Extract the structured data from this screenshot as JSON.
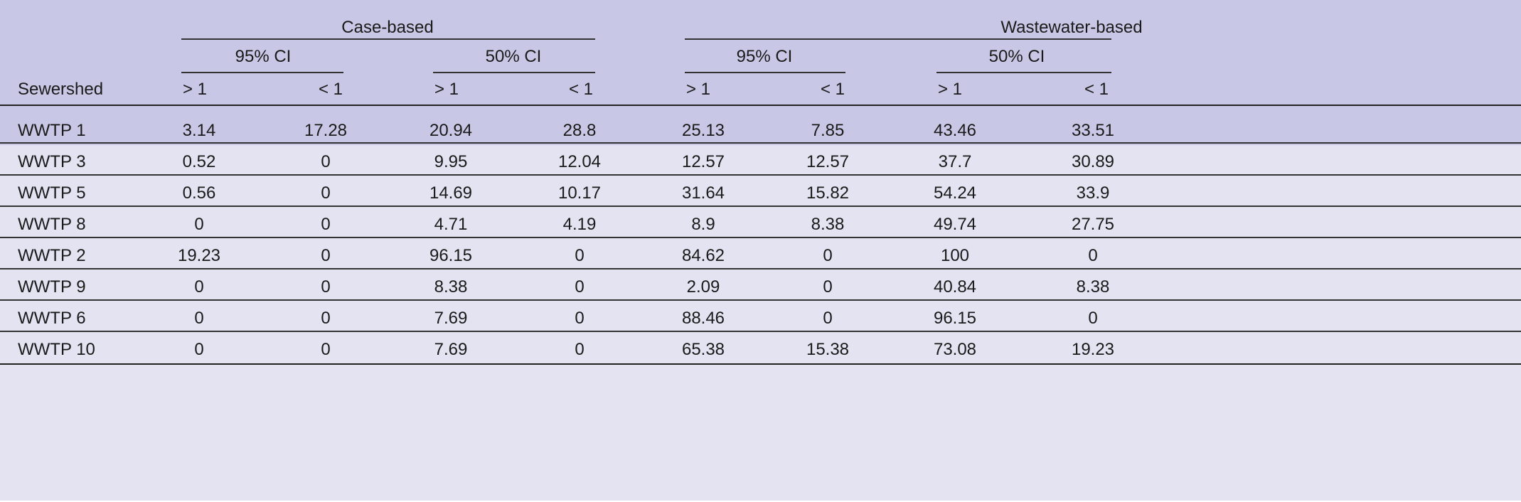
{
  "header": {
    "group_labels": [
      "Case-based",
      "Wastewater-based"
    ],
    "ci_labels": [
      "95% CI",
      "50% CI",
      "95% CI",
      "50% CI"
    ],
    "row_label": "Sewershed",
    "sub_labels": [
      "> 1",
      "< 1",
      "> 1",
      "< 1",
      "> 1",
      "< 1",
      "> 1",
      "< 1"
    ]
  },
  "rows": [
    {
      "name": "WWTP 1",
      "values": [
        "3.14",
        "17.28",
        "20.94",
        "28.8",
        "25.13",
        "7.85",
        "43.46",
        "33.51"
      ]
    },
    {
      "name": "WWTP 3",
      "values": [
        "0.52",
        "0",
        "9.95",
        "12.04",
        "12.57",
        "12.57",
        "37.7",
        "30.89"
      ]
    },
    {
      "name": "WWTP 5",
      "values": [
        "0.56",
        "0",
        "14.69",
        "10.17",
        "31.64",
        "15.82",
        "54.24",
        "33.9"
      ]
    },
    {
      "name": "WWTP 8",
      "values": [
        "0",
        "0",
        "4.71",
        "4.19",
        "8.9",
        "8.38",
        "49.74",
        "27.75"
      ]
    },
    {
      "name": "WWTP 2",
      "values": [
        "19.23",
        "0",
        "96.15",
        "0",
        "84.62",
        "0",
        "100",
        "0"
      ]
    },
    {
      "name": "WWTP 9",
      "values": [
        "0",
        "0",
        "8.38",
        "0",
        "2.09",
        "0",
        "40.84",
        "8.38"
      ]
    },
    {
      "name": "WWTP 6",
      "values": [
        "0",
        "0",
        "7.69",
        "0",
        "88.46",
        "0",
        "96.15",
        "0"
      ]
    },
    {
      "name": "WWTP 10",
      "values": [
        "0",
        "0",
        "7.69",
        "0",
        "65.38",
        "15.38",
        "73.08",
        "19.23"
      ]
    }
  ]
}
